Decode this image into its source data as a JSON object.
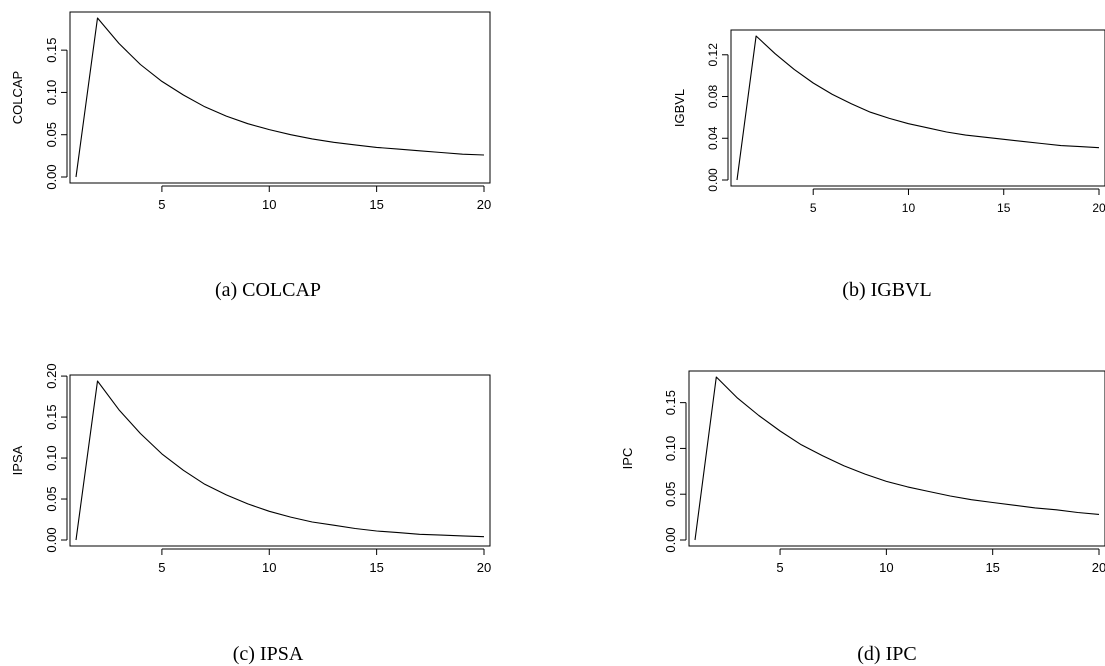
{
  "chart_data": [
    {
      "type": "line",
      "panel": "a",
      "caption": "(a) COLCAP",
      "title": "",
      "xlabel": "",
      "ylabel": "COLCAP",
      "x": [
        1,
        2,
        3,
        4,
        5,
        6,
        7,
        8,
        9,
        10,
        11,
        12,
        13,
        14,
        15,
        16,
        17,
        18,
        19,
        20
      ],
      "series": [
        {
          "values": [
            0.0,
            0.188,
            0.158,
            0.133,
            0.113,
            0.097,
            0.083,
            0.072,
            0.063,
            0.056,
            0.05,
            0.045,
            0.041,
            0.038,
            0.035,
            0.033,
            0.031,
            0.029,
            0.027,
            0.026
          ]
        }
      ],
      "xticks": [
        5,
        10,
        15,
        20
      ],
      "yticks": [
        0.0,
        0.05,
        0.1,
        0.15
      ],
      "ytick_labels": [
        "0.00",
        "0.05",
        "0.10",
        "0.15"
      ],
      "xlim": [
        1,
        20
      ],
      "ylim": [
        0,
        0.188
      ],
      "grid": false
    },
    {
      "type": "line",
      "panel": "b",
      "caption": "(b) IGBVL",
      "title": "",
      "xlabel": "",
      "ylabel": "IGBVL",
      "x": [
        1,
        2,
        3,
        4,
        5,
        6,
        7,
        8,
        9,
        10,
        11,
        12,
        13,
        14,
        15,
        16,
        17,
        18,
        19,
        20
      ],
      "series": [
        {
          "values": [
            0.0,
            0.138,
            0.121,
            0.106,
            0.093,
            0.082,
            0.073,
            0.065,
            0.059,
            0.054,
            0.05,
            0.046,
            0.043,
            0.041,
            0.039,
            0.037,
            0.035,
            0.033,
            0.032,
            0.031
          ]
        }
      ],
      "xticks": [
        5,
        10,
        15,
        20
      ],
      "yticks": [
        0.0,
        0.04,
        0.08,
        0.12
      ],
      "ytick_labels": [
        "0.00",
        "0.04",
        "0.08",
        "0.12"
      ],
      "xlim": [
        1,
        20
      ],
      "ylim": [
        0,
        0.138
      ],
      "grid": false
    },
    {
      "type": "line",
      "panel": "c",
      "caption": "(c) IPSA",
      "title": "",
      "xlabel": "",
      "ylabel": "IPSA",
      "x": [
        1,
        2,
        3,
        4,
        5,
        6,
        7,
        8,
        9,
        10,
        11,
        12,
        13,
        14,
        15,
        16,
        17,
        18,
        19,
        20
      ],
      "series": [
        {
          "values": [
            0.0,
            0.194,
            0.159,
            0.13,
            0.105,
            0.085,
            0.068,
            0.055,
            0.044,
            0.035,
            0.028,
            0.022,
            0.018,
            0.014,
            0.011,
            0.009,
            0.007,
            0.006,
            0.005,
            0.004
          ]
        }
      ],
      "xticks": [
        5,
        10,
        15,
        20
      ],
      "yticks": [
        0.0,
        0.05,
        0.1,
        0.15,
        0.2
      ],
      "ytick_labels": [
        "0.00",
        "0.05",
        "0.10",
        "0.15",
        "0.20"
      ],
      "xlim": [
        1,
        20
      ],
      "ylim": [
        0,
        0.194
      ],
      "grid": false
    },
    {
      "type": "line",
      "panel": "d",
      "caption": "(d) IPC",
      "title": "",
      "xlabel": "",
      "ylabel": "IPC",
      "x": [
        1,
        2,
        3,
        4,
        5,
        6,
        7,
        8,
        9,
        10,
        11,
        12,
        13,
        14,
        15,
        16,
        17,
        18,
        19,
        20
      ],
      "series": [
        {
          "values": [
            0.0,
            0.178,
            0.155,
            0.136,
            0.119,
            0.104,
            0.092,
            0.081,
            0.072,
            0.064,
            0.058,
            0.053,
            0.048,
            0.044,
            0.041,
            0.038,
            0.035,
            0.033,
            0.03,
            0.028
          ]
        }
      ],
      "xticks": [
        5,
        10,
        15,
        20
      ],
      "yticks": [
        0.0,
        0.05,
        0.1,
        0.15
      ],
      "ytick_labels": [
        "0.00",
        "0.05",
        "0.10",
        "0.15"
      ],
      "xlim": [
        1,
        20
      ],
      "ylim": [
        0,
        0.178
      ],
      "grid": false
    }
  ]
}
